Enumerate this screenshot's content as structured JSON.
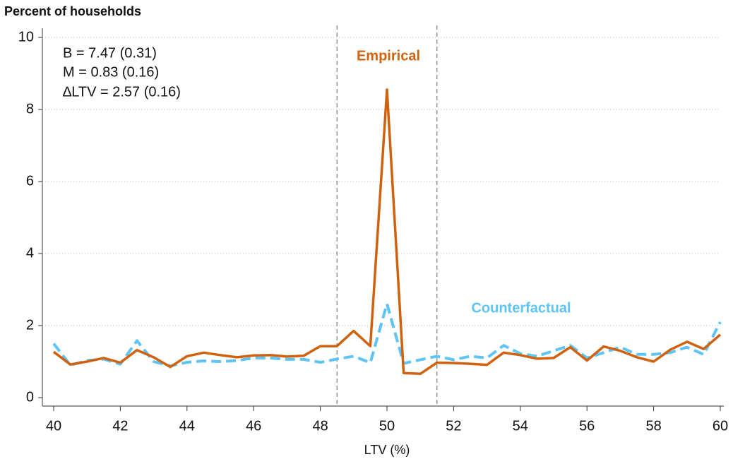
{
  "chart_data": {
    "type": "line",
    "title": "Percent of households",
    "x_label": "LTV (%)",
    "annotations": [
      "B = 7.47 (0.31)",
      "M = 0.83 (0.16)",
      "∆LTV = 2.57 (0.16)"
    ],
    "x": [
      40,
      40.5,
      41,
      41.5,
      42,
      42.5,
      43,
      43.5,
      44,
      44.5,
      45,
      45.5,
      46,
      46.5,
      47,
      47.5,
      48,
      48.5,
      49,
      49.5,
      50,
      50.5,
      51,
      51.5,
      52,
      52.5,
      53,
      53.5,
      54,
      54.5,
      55,
      55.5,
      56,
      56.5,
      57,
      57.5,
      58,
      58.5,
      59,
      59.5,
      60
    ],
    "series": [
      {
        "name": "Empirical",
        "color": "#d0620f",
        "dash": false,
        "values": [
          1.27,
          0.92,
          1.0,
          1.1,
          0.97,
          1.32,
          1.12,
          0.85,
          1.15,
          1.25,
          1.18,
          1.12,
          1.17,
          1.18,
          1.14,
          1.16,
          1.43,
          1.43,
          1.85,
          1.43,
          8.55,
          0.68,
          0.66,
          0.97,
          0.96,
          0.94,
          0.91,
          1.25,
          1.18,
          1.08,
          1.1,
          1.4,
          1.03,
          1.42,
          1.3,
          1.12,
          1.0,
          1.33,
          1.55,
          1.35,
          1.75
        ]
      },
      {
        "name": "Counterfactual",
        "color": "#5ec4f5",
        "dash": true,
        "values": [
          1.5,
          0.9,
          1.03,
          1.07,
          0.93,
          1.58,
          1.0,
          0.88,
          0.98,
          1.02,
          1.0,
          1.03,
          1.1,
          1.1,
          1.06,
          1.06,
          0.98,
          1.07,
          1.15,
          0.97,
          2.6,
          0.95,
          1.05,
          1.15,
          1.05,
          1.15,
          1.1,
          1.45,
          1.22,
          1.15,
          1.3,
          1.45,
          1.1,
          1.25,
          1.4,
          1.2,
          1.2,
          1.25,
          1.4,
          1.2,
          2.1
        ]
      }
    ],
    "vlines": [
      48.5,
      51.5
    ],
    "xlim": [
      40,
      60
    ],
    "xticks": [
      40,
      42,
      44,
      46,
      48,
      50,
      52,
      54,
      56,
      58,
      60
    ],
    "ylim": [
      0,
      10
    ],
    "yticks": [
      0,
      2,
      4,
      6,
      8,
      10
    ],
    "grid": true
  }
}
